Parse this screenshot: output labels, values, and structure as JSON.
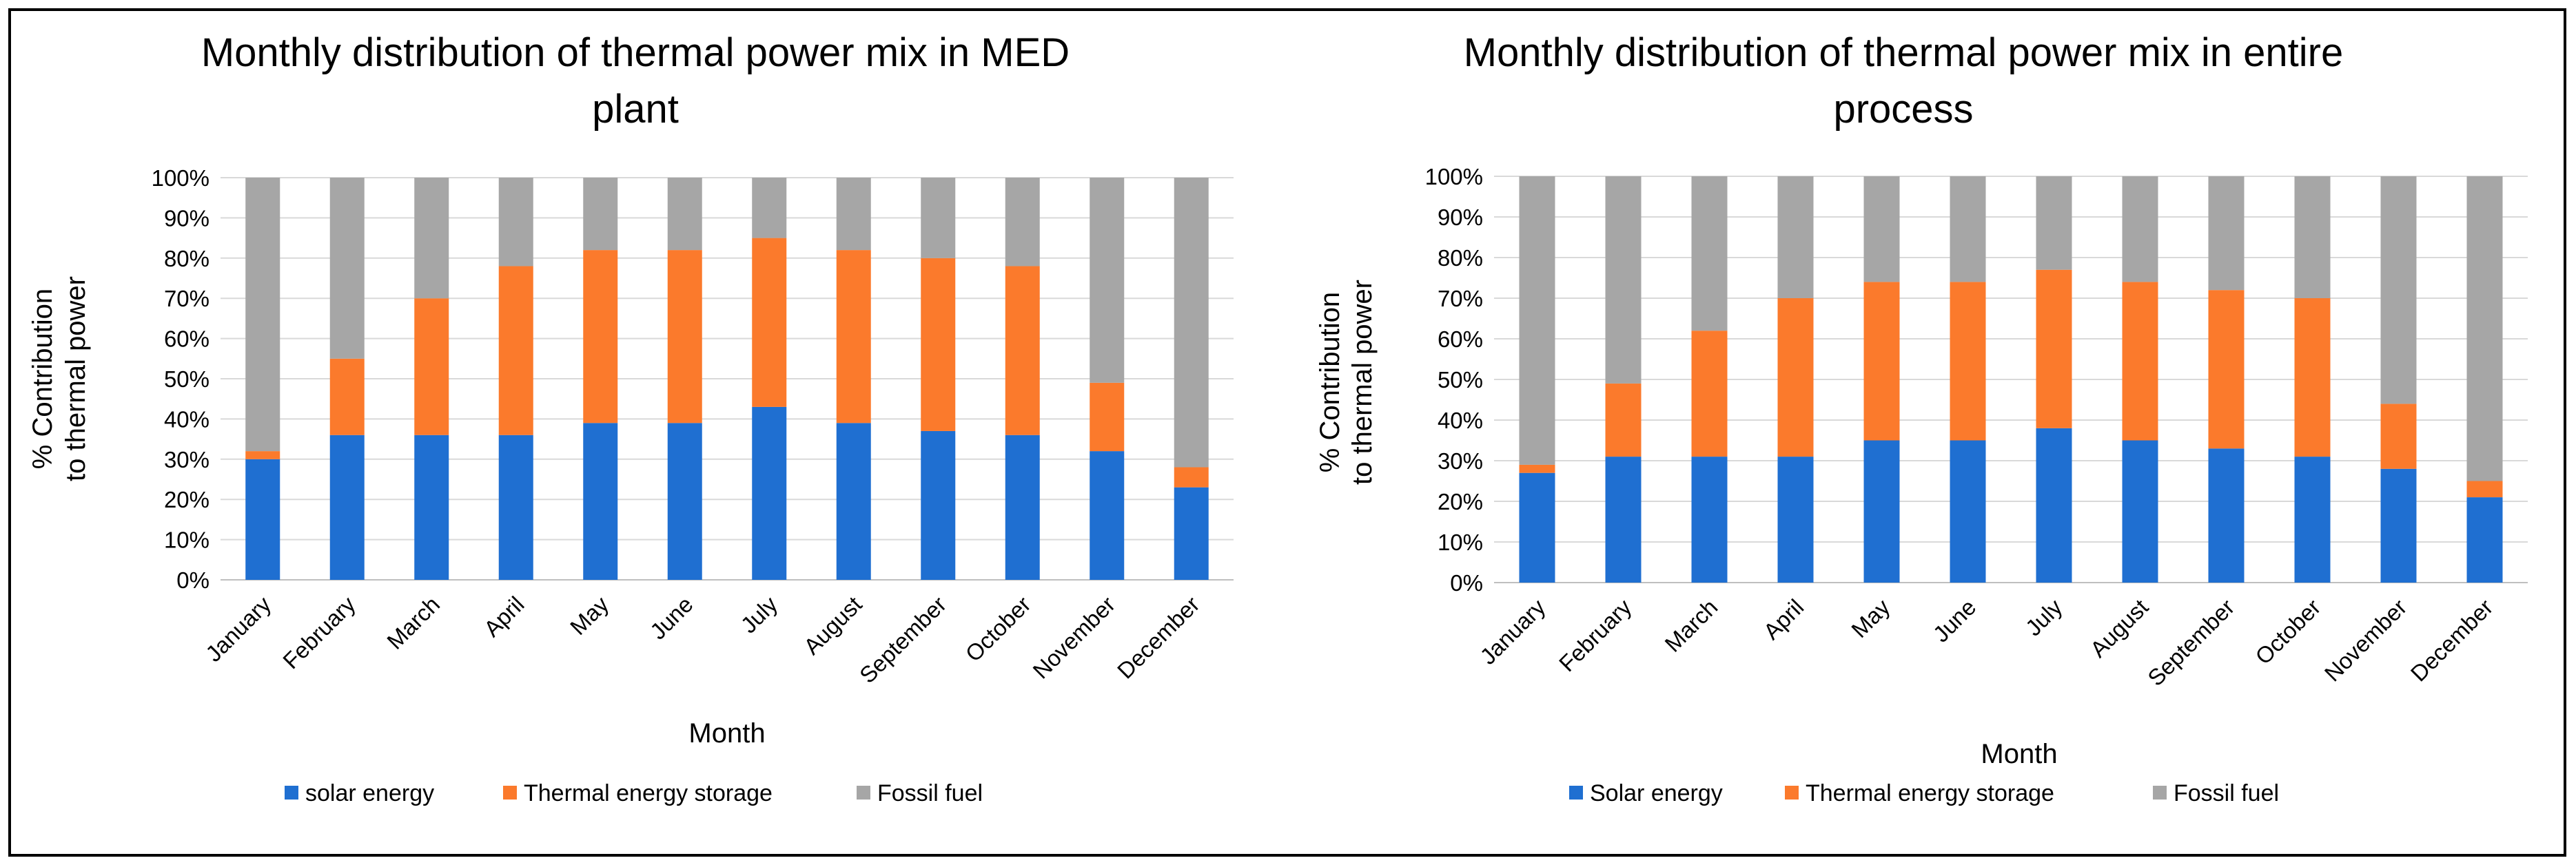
{
  "chart_data": [
    {
      "type": "bar",
      "stacked": true,
      "title_lines": [
        "Monthly distribution of thermal power mix in MED",
        "plant"
      ],
      "xlabel": "Month",
      "ylabel_lines": [
        "% Contribution",
        "to thermal power"
      ],
      "ylim": [
        0,
        100
      ],
      "ytick_labels": [
        "0%",
        "10%",
        "20%",
        "30%",
        "40%",
        "50%",
        "60%",
        "70%",
        "80%",
        "90%",
        "100%"
      ],
      "categories": [
        "January",
        "February",
        "March",
        "April",
        "May",
        "June",
        "July",
        "August",
        "September",
        "October",
        "November",
        "December"
      ],
      "series": [
        {
          "name": "solar energy",
          "color": "#1f6fd1",
          "values": [
            30,
            36,
            36,
            36,
            39,
            39,
            43,
            39,
            37,
            36,
            32,
            23
          ]
        },
        {
          "name": "Thermal energy storage",
          "color": "#fb7a2c",
          "values": [
            2,
            19,
            34,
            42,
            43,
            43,
            42,
            43,
            43,
            42,
            17,
            5
          ]
        },
        {
          "name": "Fossil fuel",
          "color": "#a6a6a6",
          "values": [
            68,
            45,
            30,
            22,
            18,
            18,
            15,
            18,
            20,
            22,
            51,
            72
          ]
        }
      ]
    },
    {
      "type": "bar",
      "stacked": true,
      "title_lines": [
        "Monthly distribution of thermal power mix in entire",
        "process"
      ],
      "xlabel": "Month",
      "ylabel_lines": [
        "% Contribution",
        "to thermal power"
      ],
      "ylim": [
        0,
        100
      ],
      "ytick_labels": [
        "0%",
        "10%",
        "20%",
        "30%",
        "40%",
        "50%",
        "60%",
        "70%",
        "80%",
        "90%",
        "100%"
      ],
      "categories": [
        "January",
        "February",
        "March",
        "April",
        "May",
        "June",
        "July",
        "August",
        "September",
        "October",
        "November",
        "December"
      ],
      "series": [
        {
          "name": "Solar energy",
          "color": "#1f6fd1",
          "values": [
            27,
            31,
            31,
            31,
            35,
            35,
            38,
            35,
            33,
            31,
            28,
            21
          ]
        },
        {
          "name": "Thermal energy storage",
          "color": "#fb7a2c",
          "values": [
            2,
            18,
            31,
            39,
            39,
            39,
            39,
            39,
            39,
            39,
            16,
            4
          ]
        },
        {
          "name": "Fossil fuel",
          "color": "#a6a6a6",
          "values": [
            71,
            51,
            38,
            30,
            26,
            26,
            23,
            26,
            28,
            30,
            56,
            75
          ]
        }
      ]
    }
  ]
}
